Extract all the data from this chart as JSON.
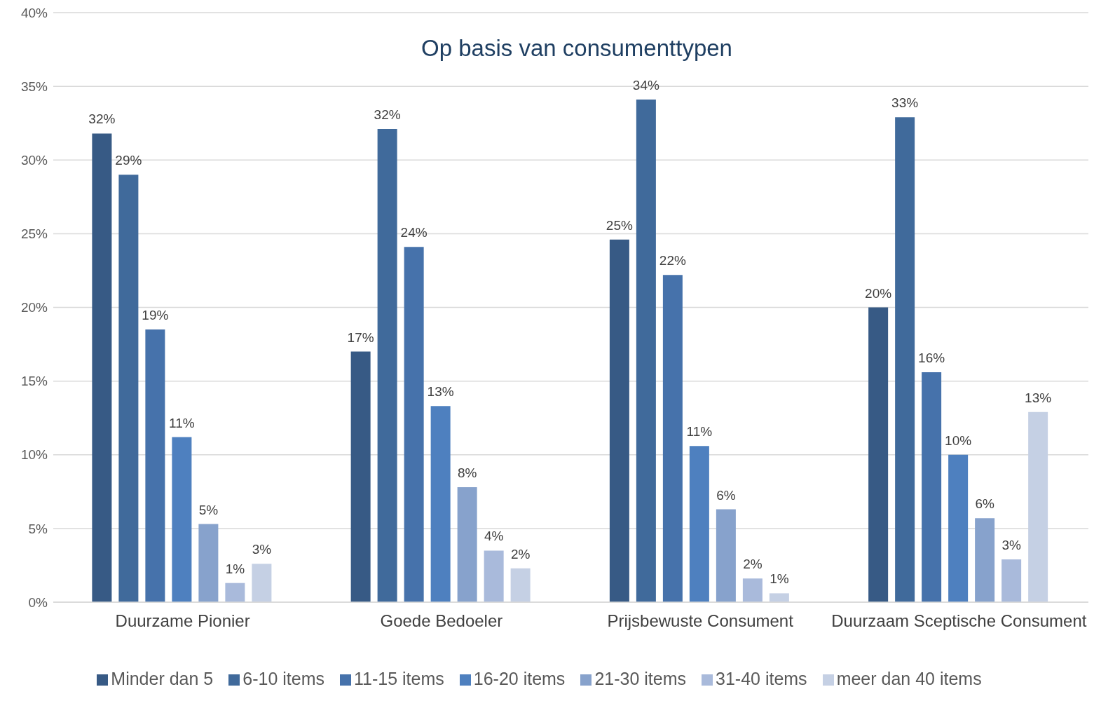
{
  "chart_data": {
    "type": "bar",
    "title": "Op basis van consumenttypen",
    "categories": [
      "Duurzame Pionier",
      "Goede Bedoeler",
      "Prijsbewuste Consument",
      "Duurzaam Sceptische Consument"
    ],
    "series": [
      {
        "name": "Minder dan 5",
        "color": "#375a85",
        "values": [
          31.8,
          17.0,
          24.6,
          20.0
        ],
        "value_labels": [
          "32%",
          "17%",
          "25%",
          "20%"
        ]
      },
      {
        "name": "6-10 items",
        "color": "#406a9b",
        "values": [
          29.0,
          32.1,
          34.1,
          32.9
        ],
        "value_labels": [
          "29%",
          "32%",
          "34%",
          "33%"
        ]
      },
      {
        "name": "11-15 items",
        "color": "#4672ab",
        "values": [
          18.5,
          24.1,
          22.2,
          15.6
        ],
        "value_labels": [
          "19%",
          "24%",
          "22%",
          "16%"
        ]
      },
      {
        "name": "16-20 items",
        "color": "#4e80bf",
        "values": [
          11.2,
          13.3,
          10.6,
          10.0
        ],
        "value_labels": [
          "11%",
          "13%",
          "11%",
          "10%"
        ]
      },
      {
        "name": "21-30 items",
        "color": "#87a2cc",
        "values": [
          5.3,
          7.8,
          6.3,
          5.7
        ],
        "value_labels": [
          "5%",
          "8%",
          "6%",
          "6%"
        ]
      },
      {
        "name": "31-40 items",
        "color": "#a9badb",
        "values": [
          1.3,
          3.5,
          1.6,
          2.9
        ],
        "value_labels": [
          "1%",
          "4%",
          "2%",
          "3%"
        ]
      },
      {
        "name": "meer dan 40 items",
        "color": "#c5d0e4",
        "values": [
          2.6,
          2.3,
          0.6,
          12.9
        ],
        "value_labels": [
          "3%",
          "2%",
          "1%",
          "13%"
        ]
      }
    ],
    "ylim": [
      0,
      40
    ],
    "yticks": [
      {
        "value": 0,
        "label": "0%"
      },
      {
        "value": 5,
        "label": "5%"
      },
      {
        "value": 10,
        "label": "10%"
      },
      {
        "value": 15,
        "label": "15%"
      },
      {
        "value": 20,
        "label": "20%"
      },
      {
        "value": 25,
        "label": "25%"
      },
      {
        "value": 30,
        "label": "30%"
      },
      {
        "value": 35,
        "label": "35%"
      },
      {
        "value": 40,
        "label": "40%"
      }
    ],
    "grid": "y",
    "legend": "bottom"
  }
}
